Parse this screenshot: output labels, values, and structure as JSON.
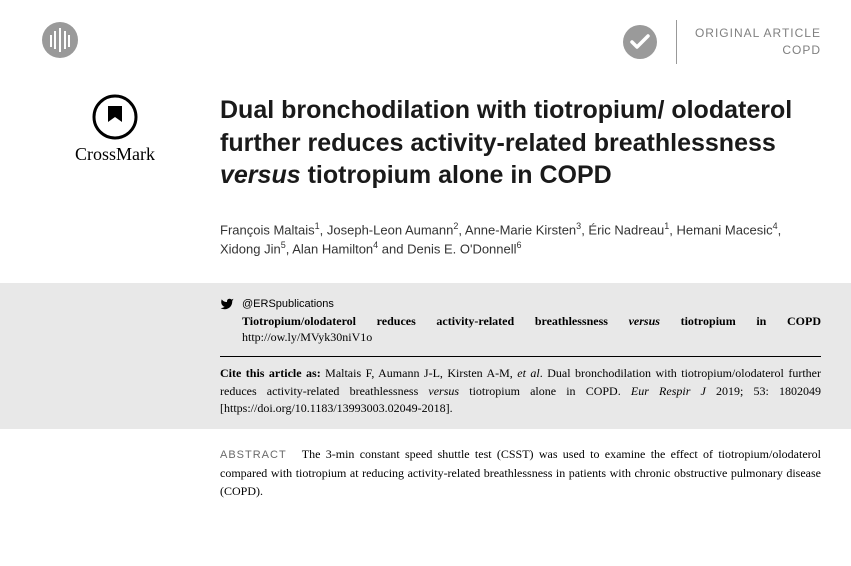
{
  "header": {
    "article_type_line1": "ORIGINAL ARTICLE",
    "article_type_line2": "COPD"
  },
  "crossmark": {
    "label": "CrossMark"
  },
  "title_html": "Dual bronchodilation with tiotropium/ olodaterol further reduces activity-related breathlessness <em>versus</em> tiotropium alone in COPD",
  "authors_html": "François Maltais<sup>1</sup>, Joseph-Leon Aumann<sup>2</sup>, Anne-Marie Kirsten<sup>3</sup>, Éric Nadreau<sup>1</sup>, Hemani Macesic<sup>4</sup>, Xidong Jin<sup>5</sup>, Alan Hamilton<sup>4</sup> and Denis E. O'Donnell<sup>6</sup>",
  "social": {
    "handle": "@ERSpublications",
    "headline_html": "Tiotropium/olodaterol reduces activity-related breathlessness <em>versus</em> tiotropium in COPD",
    "link": "http://ow.ly/MVyk30niV1o"
  },
  "citation_html": "<strong>Cite this article as:</strong> Maltais F, Aumann J-L, Kirsten A-M, <em>et al</em>. Dual bronchodilation with tiotropium/olodaterol further reduces activity-related breathlessness <em>versus</em> tiotropium alone in COPD. <em>Eur Respir J</em> 2019; 53: 1802049 [https://doi.org/10.1183/13993003.02049-2018].",
  "abstract": {
    "label": "ABSTRACT",
    "text": "The 3-min constant speed shuttle test (CSST) was used to examine the effect of tiotropium/olodaterol compared with tiotropium at reducing activity-related breathlessness in patients with chronic obstructive pulmonary disease (COPD)."
  },
  "colors": {
    "logo_grey": "#9a9a9a",
    "badge_grey": "#9a9a9a",
    "type_grey": "#808080",
    "box_grey": "#e8e8e8",
    "abstract_label": "#6a6a6a"
  }
}
